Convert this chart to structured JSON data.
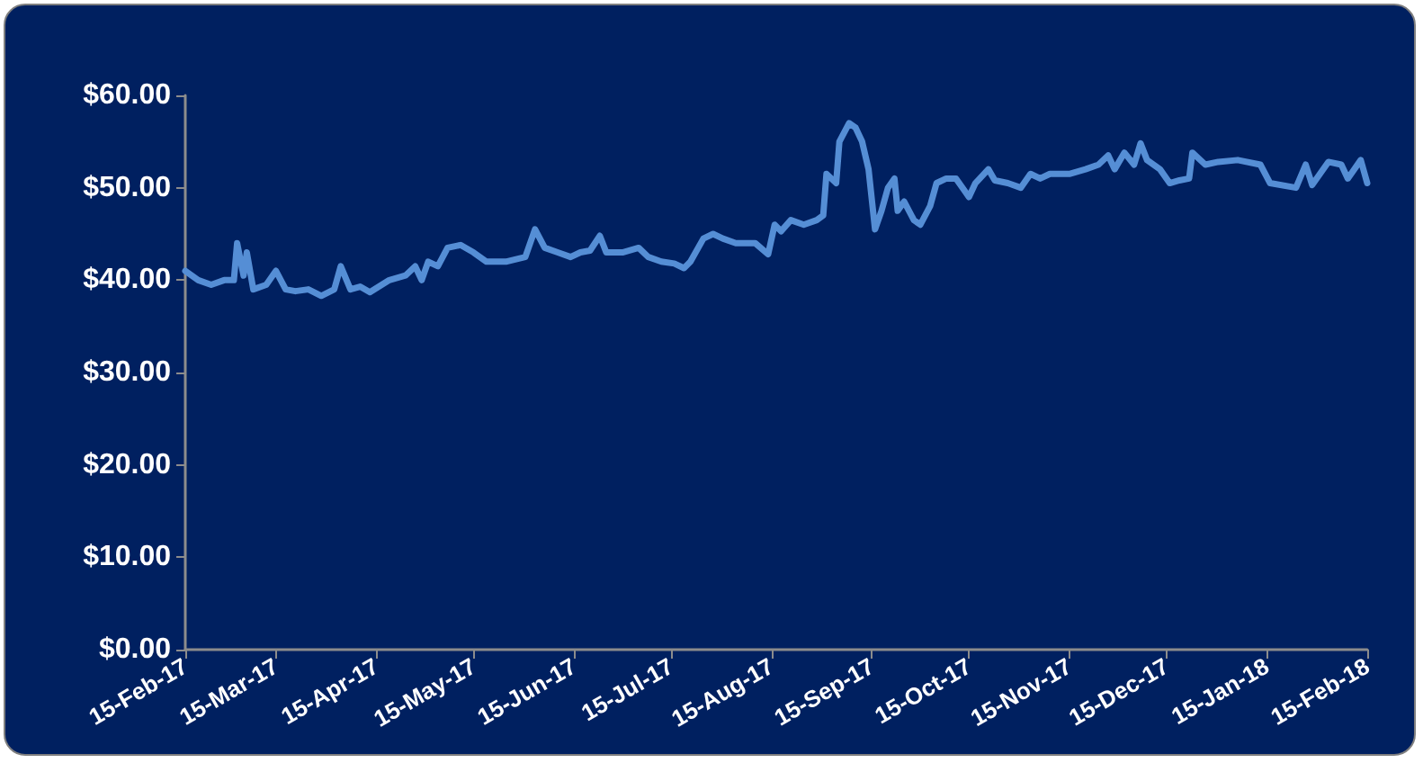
{
  "chart_data": {
    "type": "line",
    "x": [
      "2017-02-15",
      "2017-02-19",
      "2017-02-23",
      "2017-02-27",
      "2017-03-02",
      "2017-03-03",
      "2017-03-05",
      "2017-03-06",
      "2017-03-08",
      "2017-03-12",
      "2017-03-15",
      "2017-03-18",
      "2017-03-21",
      "2017-03-25",
      "2017-03-29",
      "2017-04-02",
      "2017-04-04",
      "2017-04-07",
      "2017-04-10",
      "2017-04-13",
      "2017-04-19",
      "2017-04-24",
      "2017-04-27",
      "2017-04-29",
      "2017-05-01",
      "2017-05-04",
      "2017-05-07",
      "2017-05-11",
      "2017-05-15",
      "2017-05-19",
      "2017-05-25",
      "2017-05-31",
      "2017-06-03",
      "2017-06-06",
      "2017-06-10",
      "2017-06-14",
      "2017-06-17",
      "2017-06-20",
      "2017-06-23",
      "2017-06-25",
      "2017-06-30",
      "2017-07-05",
      "2017-07-08",
      "2017-07-12",
      "2017-07-16",
      "2017-07-19",
      "2017-07-21",
      "2017-07-25",
      "2017-07-28",
      "2017-07-31",
      "2017-08-04",
      "2017-08-10",
      "2017-08-14",
      "2017-08-16",
      "2017-08-18",
      "2017-08-21",
      "2017-08-25",
      "2017-08-29",
      "2017-08-31",
      "2017-09-01",
      "2017-09-04",
      "2017-09-05",
      "2017-09-08",
      "2017-09-10",
      "2017-09-12",
      "2017-09-14",
      "2017-09-16",
      "2017-09-18",
      "2017-09-20",
      "2017-09-22",
      "2017-09-23",
      "2017-09-25",
      "2017-09-28",
      "2017-09-30",
      "2017-10-03",
      "2017-10-05",
      "2017-10-08",
      "2017-10-11",
      "2017-10-14",
      "2017-10-15",
      "2017-10-17",
      "2017-10-21",
      "2017-10-23",
      "2017-10-27",
      "2017-10-31",
      "2017-11-03",
      "2017-11-06",
      "2017-11-09",
      "2017-11-15",
      "2017-11-20",
      "2017-11-24",
      "2017-11-27",
      "2017-11-29",
      "2017-12-02",
      "2017-12-05",
      "2017-12-07",
      "2017-12-09",
      "2017-12-13",
      "2017-12-16",
      "2017-12-19",
      "2017-12-22",
      "2017-12-23",
      "2017-12-27",
      "2017-12-31",
      "2018-01-06",
      "2018-01-13",
      "2018-01-16",
      "2018-01-24",
      "2018-01-27",
      "2018-01-29",
      "2018-02-03",
      "2018-02-07",
      "2018-02-09",
      "2018-02-13",
      "2018-02-15"
    ],
    "series": [
      {
        "color": "#558ed5",
        "values": [
          41.0,
          40.0,
          39.5,
          40.0,
          40.0,
          44.0,
          40.5,
          43.0,
          39.0,
          39.5,
          41.0,
          39.0,
          38.8,
          39.0,
          38.3,
          39.0,
          41.5,
          39.0,
          39.3,
          38.7,
          40.0,
          40.5,
          41.5,
          40.0,
          42.0,
          41.5,
          43.5,
          43.8,
          43.0,
          42.0,
          42.0,
          42.5,
          45.5,
          43.5,
          43.0,
          42.5,
          43.0,
          43.2,
          44.8,
          43.0,
          43.0,
          43.5,
          42.5,
          42.0,
          41.8,
          41.3,
          42.0,
          44.5,
          45.0,
          44.5,
          44.0,
          44.0,
          42.8,
          46.0,
          45.3,
          46.5,
          46.0,
          46.5,
          47.0,
          51.5,
          50.5,
          55.0,
          57.0,
          56.5,
          55.0,
          52.0,
          45.5,
          47.5,
          50.0,
          51.0,
          47.5,
          48.5,
          46.5,
          46.0,
          48.0,
          50.5,
          51.0,
          51.0,
          49.5,
          49.0,
          50.5,
          52.0,
          50.8,
          50.5,
          50.0,
          51.5,
          51.0,
          51.5,
          51.5,
          52.0,
          52.5,
          53.5,
          52.0,
          53.8,
          52.5,
          54.8,
          53.0,
          52.0,
          50.5,
          50.8,
          51.0,
          53.8,
          52.5,
          52.8,
          53.0,
          52.5,
          50.5,
          50.0,
          52.5,
          50.3,
          52.8,
          52.5,
          51.0,
          53.0,
          50.5
        ]
      }
    ],
    "xlim": [
      "2017-02-15",
      "2018-02-15"
    ],
    "xticks": [
      {
        "value": "2017-02-15",
        "label": "15-Feb-17"
      },
      {
        "value": "2017-03-15",
        "label": "15-Mar-17"
      },
      {
        "value": "2017-04-15",
        "label": "15-Apr-17"
      },
      {
        "value": "2017-05-15",
        "label": "15-May-17"
      },
      {
        "value": "2017-06-15",
        "label": "15-Jun-17"
      },
      {
        "value": "2017-07-15",
        "label": "15-Jul-17"
      },
      {
        "value": "2017-08-15",
        "label": "15-Aug-17"
      },
      {
        "value": "2017-09-15",
        "label": "15-Sep-17"
      },
      {
        "value": "2017-10-15",
        "label": "15-Oct-17"
      },
      {
        "value": "2017-11-15",
        "label": "15-Nov-17"
      },
      {
        "value": "2017-12-15",
        "label": "15-Dec-17"
      },
      {
        "value": "2018-01-15",
        "label": "15-Jan-18"
      },
      {
        "value": "2018-02-15",
        "label": "15-Feb-18"
      }
    ],
    "ylim": [
      0,
      60
    ],
    "yticks": [
      {
        "value": 0,
        "label": "$0.00"
      },
      {
        "value": 10,
        "label": "$10.00"
      },
      {
        "value": 20,
        "label": "$20.00"
      },
      {
        "value": 30,
        "label": "$30.00"
      },
      {
        "value": 40,
        "label": "$40.00"
      },
      {
        "value": 50,
        "label": "$50.00"
      },
      {
        "value": 60,
        "label": "$60.00"
      }
    ],
    "grid": false,
    "marker": "none",
    "line_style": "solid"
  }
}
